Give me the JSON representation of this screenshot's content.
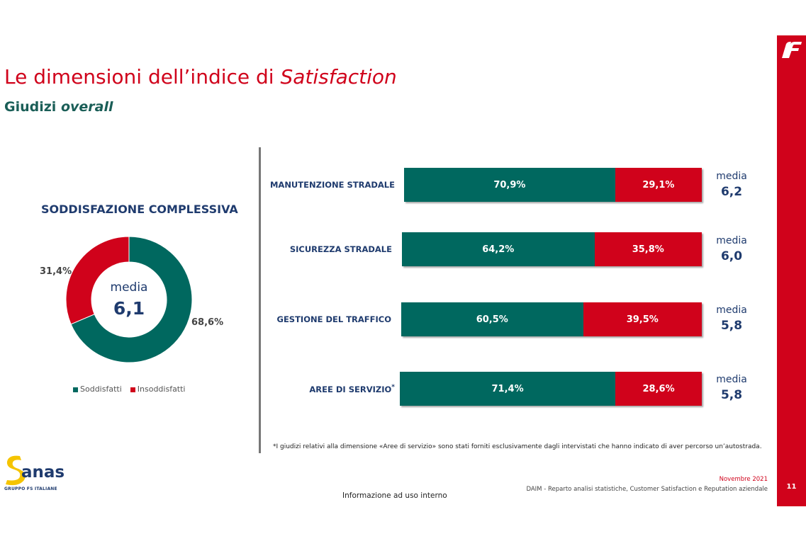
{
  "header": {
    "title_main": "Le dimensioni dell’indice di ",
    "title_italic": "Satisfaction",
    "subtitle_main": "Giudizi ",
    "subtitle_italic": "overall"
  },
  "donut": {
    "title": "SODDISFAZIONE COMPLESSIVA",
    "media_label": "media",
    "media_value": "6,1",
    "label_green": "68,6%",
    "label_red": "31,4%",
    "legend": [
      "Soddisfatti",
      "Insoddisfatti"
    ]
  },
  "chart_data": [
    {
      "type": "pie",
      "title": "SODDISFAZIONE COMPLESSIVA",
      "labels": [
        "Soddisfatti",
        "Insoddisfatti"
      ],
      "values": [
        68.6,
        31.4
      ],
      "colors": [
        "#00685f",
        "#d0021b"
      ],
      "center_text": "media 6,1",
      "legend_position": "bottom"
    },
    {
      "type": "bar",
      "orientation": "horizontal",
      "stacked": true,
      "categories": [
        "MANUTENZIONE STRADALE",
        "SICUREZZA STRADALE",
        "GESTIONE DEL TRAFFICO",
        "AREE DI SERVIZIO"
      ],
      "series": [
        {
          "name": "Soddisfatti",
          "values": [
            70.9,
            64.2,
            60.5,
            71.4
          ],
          "labels": [
            "70,9%",
            "64,2%",
            "60,5%",
            "71,4%"
          ],
          "color": "#00685f"
        },
        {
          "name": "Insoddisfatti",
          "values": [
            29.1,
            35.8,
            39.5,
            28.6
          ],
          "labels": [
            "29,1%",
            "35,8%",
            "39,5%",
            "28,6%"
          ],
          "color": "#d0021b"
        }
      ],
      "media": [
        {
          "label": "media",
          "value": "6,2"
        },
        {
          "label": "media",
          "value": "6,0"
        },
        {
          "label": "media",
          "value": "5,8"
        },
        {
          "label": "media",
          "value": "5,8"
        }
      ],
      "xlim": [
        0,
        100
      ]
    }
  ],
  "footer": {
    "footnote": "*I giudizi relativi alla dimensione «Aree di servizio» sono stati forniti esclusivamente dagli intervistati che hanno indicato di aver percorso un’autostrada.",
    "date": "Novembre 2021",
    "department": "DAIM - Reparto analisi statistiche, Customer Satisfaction e Reputation aziendale",
    "page_number": "11",
    "internal_note": "Informazione ad uso interno",
    "logo_text": "anas",
    "logo_subtext": "GRUPPO FS ITALIANE"
  },
  "colors": {
    "brand_red": "#d0021b",
    "brand_green": "#00685f",
    "navy": "#1f3b6e"
  }
}
